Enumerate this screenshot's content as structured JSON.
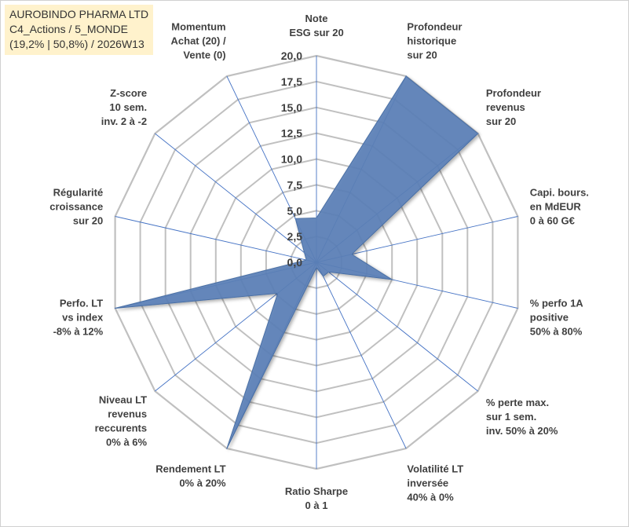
{
  "header": {
    "line1": "AUROBINDO PHARMA LTD",
    "line2": "C4_Actions / 5_MONDE",
    "line3": "(19,2% | 50,8%) / 2026W13",
    "background_color": "#fff2cc"
  },
  "chart_data": {
    "type": "radar",
    "title": "AUROBINDO PHARMA LTD",
    "rmin": 0,
    "rmax": 20,
    "tick_step": 2.5,
    "tick_labels": [
      "0,0",
      "2,5",
      "5,0",
      "7,5",
      "10,0",
      "12,5",
      "15,0",
      "17,5",
      "20,0"
    ],
    "fill_color": "#5b80b7",
    "grid_color": "#c0c0c0",
    "spoke_color": "#4472c4",
    "axes": [
      {
        "label": [
          "Note",
          "ESG sur 20"
        ],
        "value": 4.3
      },
      {
        "label": [
          "Profondeur",
          "historique",
          "sur 20"
        ],
        "value": 20.0
      },
      {
        "label": [
          "Profondeur",
          "revenus",
          "sur 20"
        ],
        "value": 20.0
      },
      {
        "label": [
          "Capi. bours.",
          "en MdEUR",
          "0 à 60 G€"
        ],
        "value": 3.5
      },
      {
        "label": [
          "% perfo 1A",
          "positive",
          "50% à 80%"
        ],
        "value": 7.5
      },
      {
        "label": [
          "% perte max.",
          "sur 1 sem.",
          "inv. 50% à 20%"
        ],
        "value": 1.5
      },
      {
        "label": [
          "Volatilité LT",
          "inversée",
          "40% à 0%"
        ],
        "value": 1.5
      },
      {
        "label": [
          "Ratio Sharpe",
          "0 à 1"
        ],
        "value": 0.5
      },
      {
        "label": [
          "Rendement LT",
          "0% à 20%"
        ],
        "value": 20.0
      },
      {
        "label": [
          "Niveau LT",
          "revenus",
          "reccurents",
          "0% à 6%"
        ],
        "value": 4.8
      },
      {
        "label": [
          "Perfo. LT",
          "vs index",
          "-8% à 12%"
        ],
        "value": 20.0
      },
      {
        "label": [
          "Régularité",
          "croissance",
          "sur 20"
        ],
        "value": 1.0
      },
      {
        "label": [
          "Z-score",
          "10 sem.",
          "inv. 2 à -2"
        ],
        "value": 1.5
      },
      {
        "label": [
          "Momentum",
          "Achat (20) /",
          "Vente (0)"
        ],
        "value": 4.7
      }
    ]
  }
}
